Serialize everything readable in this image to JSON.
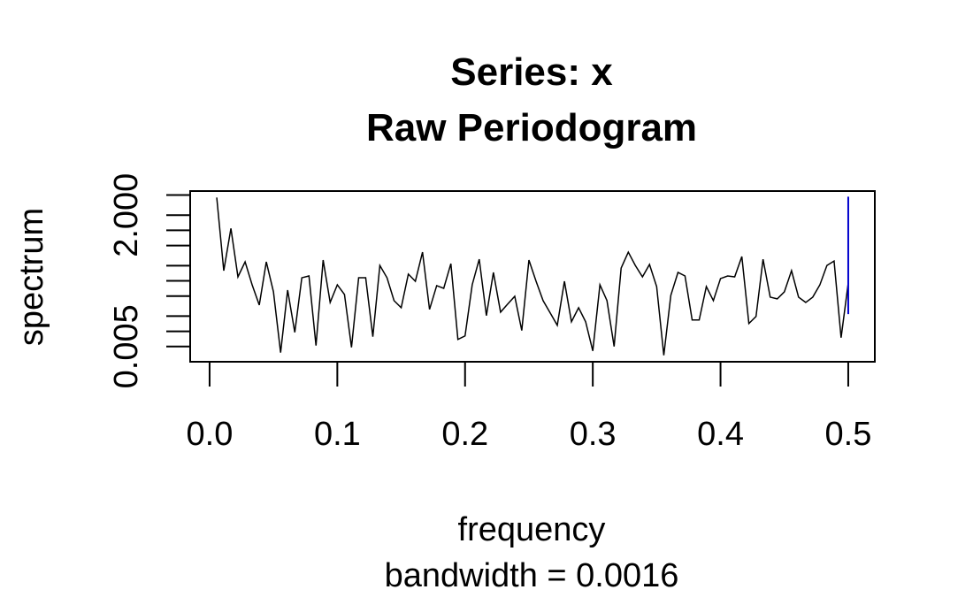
{
  "chart_data": {
    "type": "line",
    "title": "Series: x",
    "subtitle": "Raw Periodogram",
    "xlabel": "frequency",
    "caption": "bandwidth = 0.0016",
    "ylabel": "spectrum",
    "ylog": true,
    "xlim": [
      -0.0152,
      0.5208
    ],
    "ylim": [
      0.0025,
      6
    ],
    "xticks": [
      {
        "value": 0,
        "label": "0.0"
      },
      0.1,
      0.2,
      0.3,
      0.4,
      0.5
    ],
    "yticks": [
      0.005,
      {
        "value": 2,
        "label": "2.000"
      }
    ],
    "yminor_ticks": [
      0.01,
      0.02,
      0.05,
      0.1,
      0.2,
      0.5,
      1,
      5
    ],
    "x": [
      0.0056,
      0.0111,
      0.0167,
      0.0222,
      0.0278,
      0.0333,
      0.0389,
      0.0444,
      0.05,
      0.0556,
      0.0611,
      0.0667,
      0.0722,
      0.0778,
      0.0833,
      0.0889,
      0.0944,
      0.1,
      0.1056,
      0.1111,
      0.1167,
      0.1222,
      0.1278,
      0.1333,
      0.1389,
      0.1444,
      0.15,
      0.1556,
      0.1611,
      0.1667,
      0.1722,
      0.1778,
      0.1833,
      0.1889,
      0.1944,
      0.2,
      0.2056,
      0.2111,
      0.2167,
      0.2222,
      0.2278,
      0.2333,
      0.2389,
      0.2444,
      0.25,
      0.2556,
      0.2611,
      0.2667,
      0.2722,
      0.2778,
      0.2833,
      0.2889,
      0.2944,
      0.3,
      0.3056,
      0.3111,
      0.3167,
      0.3222,
      0.3278,
      0.3333,
      0.3389,
      0.3444,
      0.35,
      0.3556,
      0.3611,
      0.3667,
      0.3722,
      0.3778,
      0.3833,
      0.3889,
      0.3944,
      0.4,
      0.4056,
      0.4111,
      0.4167,
      0.4222,
      0.4278,
      0.4333,
      0.4389,
      0.4444,
      0.45,
      0.4556,
      0.4611,
      0.4667,
      0.4722,
      0.4778,
      0.4833,
      0.4889,
      0.4944,
      0.5
    ],
    "series": [
      {
        "color": "#000000",
        "values": [
          4.47,
          0.159,
          1.09,
          0.12,
          0.238,
          0.0836,
          0.0332,
          0.238,
          0.0607,
          0.00379,
          0.0657,
          0.00955,
          0.115,
          0.125,
          0.00523,
          0.258,
          0.0374,
          0.0836,
          0.0537,
          0.00482,
          0.115,
          0.115,
          0.00782,
          0.202,
          0.115,
          0.0406,
          0.0294,
          0.136,
          0.0982,
          0.37,
          0.0272,
          0.0804,
          0.0711,
          0.219,
          0.00692,
          0.00813,
          0.0836,
          0.268,
          0.0205,
          0.147,
          0.024,
          0.0345,
          0.0495,
          0.0104,
          0.258,
          0.0982,
          0.0406,
          0.0231,
          0.0132,
          0.0982,
          0.0155,
          0.0294,
          0.0155,
          0.0041,
          0.0836,
          0.0406,
          0.00502,
          0.179,
          0.37,
          0.202,
          0.12,
          0.211,
          0.0771,
          0.00336,
          0.0516,
          0.147,
          0.125,
          0.0168,
          0.0168,
          0.0771,
          0.0406,
          0.111,
          0.125,
          0.12,
          0.303,
          0.0143,
          0.0197,
          0.268,
          0.0476,
          0.044,
          0.0607,
          0.159,
          0.0476,
          0.0374,
          0.0476,
          0.0836,
          0.202,
          0.247,
          0.0075,
          0.0906
        ]
      }
    ],
    "ci_bar": {
      "x": 0.5,
      "lower": 0.022,
      "upper": 4.65,
      "color": "#0000cd"
    }
  }
}
